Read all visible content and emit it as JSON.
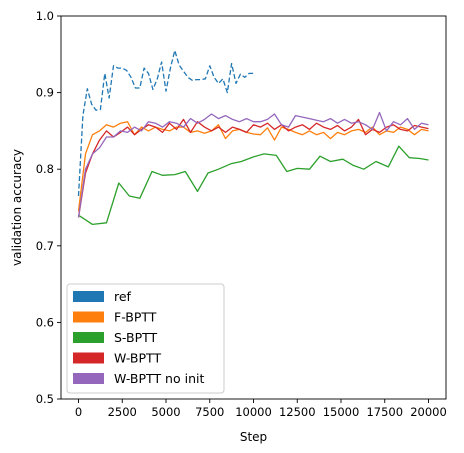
{
  "chart_data": {
    "type": "line",
    "xlabel": "Step",
    "ylabel": "validation accuracy",
    "xlim": [
      -1000,
      21000
    ],
    "ylim": [
      0.5,
      1.0
    ],
    "xticks": [
      0,
      2500,
      5000,
      7500,
      10000,
      12500,
      15000,
      17500,
      20000
    ],
    "xtick_labels": [
      "0",
      "2500",
      "5000",
      "7500",
      "10000",
      "12500",
      "15000",
      "17500",
      "20000"
    ],
    "yticks": [
      0.5,
      0.6,
      0.7,
      0.8,
      0.9,
      1.0
    ],
    "ytick_labels": [
      "0.5",
      "0.6",
      "0.7",
      "0.8",
      "0.9",
      "1.0"
    ],
    "grid": false,
    "legend_position": "bottom-left",
    "series": [
      {
        "name": "ref",
        "color": "#1f77b4",
        "dash": "dashed",
        "x": [
          0,
          250,
          500,
          750,
          1000,
          1250,
          1500,
          1750,
          2000,
          2250,
          2500,
          2750,
          3000,
          3250,
          3500,
          3750,
          4000,
          4250,
          4500,
          4750,
          5000,
          5250,
          5500,
          5750,
          6000,
          6250,
          6500,
          6750,
          7000,
          7250,
          7500,
          7750,
          8000,
          8250,
          8500,
          8750,
          9000,
          9250,
          9500,
          9750,
          10000
        ],
        "y": [
          0.765,
          0.87,
          0.905,
          0.885,
          0.877,
          0.878,
          0.925,
          0.893,
          0.935,
          0.932,
          0.932,
          0.929,
          0.92,
          0.906,
          0.906,
          0.932,
          0.925,
          0.904,
          0.918,
          0.94,
          0.902,
          0.932,
          0.955,
          0.936,
          0.928,
          0.92,
          0.916,
          0.917,
          0.917,
          0.918,
          0.935,
          0.92,
          0.912,
          0.918,
          0.9,
          0.938,
          0.912,
          0.924,
          0.92,
          0.925,
          0.925
        ]
      },
      {
        "name": "F-BPTT",
        "color": "#ff7f0e",
        "dash": "solid",
        "x": [
          0,
          400,
          800,
          1200,
          1600,
          2000,
          2400,
          2800,
          3200,
          3600,
          4000,
          4400,
          4800,
          5200,
          5600,
          6000,
          6400,
          6800,
          7200,
          7600,
          8000,
          8400,
          8800,
          9200,
          9600,
          10000,
          10400,
          10800,
          11200,
          11600,
          12000,
          12400,
          12800,
          13200,
          13600,
          14000,
          14400,
          14800,
          15200,
          15600,
          16000,
          16400,
          16800,
          17200,
          17600,
          18000,
          18400,
          18800,
          19200,
          19600,
          20000
        ],
        "y": [
          0.745,
          0.82,
          0.845,
          0.85,
          0.858,
          0.855,
          0.86,
          0.862,
          0.845,
          0.855,
          0.85,
          0.855,
          0.852,
          0.85,
          0.855,
          0.855,
          0.848,
          0.85,
          0.847,
          0.85,
          0.858,
          0.84,
          0.85,
          0.852,
          0.848,
          0.846,
          0.845,
          0.854,
          0.838,
          0.855,
          0.852,
          0.848,
          0.845,
          0.85,
          0.845,
          0.848,
          0.84,
          0.848,
          0.845,
          0.85,
          0.852,
          0.848,
          0.855,
          0.845,
          0.85,
          0.848,
          0.855,
          0.852,
          0.845,
          0.852,
          0.85
        ]
      },
      {
        "name": "S-BPTT",
        "color": "#2ca02c",
        "dash": "solid",
        "x": [
          0,
          800,
          1600,
          2300,
          2900,
          3500,
          4200,
          4800,
          5500,
          6100,
          6800,
          7400,
          8000,
          8700,
          9300,
          10000,
          10600,
          11300,
          11900,
          12500,
          13200,
          13800,
          14400,
          15100,
          15700,
          16300,
          17000,
          17700,
          18300,
          18900,
          19500,
          20000
        ],
        "y": [
          0.74,
          0.728,
          0.73,
          0.782,
          0.765,
          0.762,
          0.797,
          0.792,
          0.793,
          0.797,
          0.771,
          0.795,
          0.8,
          0.807,
          0.81,
          0.816,
          0.82,
          0.818,
          0.797,
          0.801,
          0.8,
          0.817,
          0.81,
          0.813,
          0.805,
          0.8,
          0.81,
          0.803,
          0.83,
          0.815,
          0.814,
          0.812
        ]
      },
      {
        "name": "W-BPTT",
        "color": "#d62728",
        "dash": "solid",
        "x": [
          0,
          400,
          800,
          1200,
          1600,
          2000,
          2400,
          2800,
          3200,
          3600,
          4000,
          4400,
          4800,
          5200,
          5600,
          6000,
          6400,
          6800,
          7200,
          7600,
          8000,
          8400,
          8800,
          9200,
          9600,
          10000,
          10400,
          10800,
          11200,
          11600,
          12000,
          12400,
          12800,
          13200,
          13600,
          14000,
          14400,
          14800,
          15200,
          15600,
          16000,
          16400,
          16800,
          17200,
          17600,
          18000,
          18400,
          18800,
          19200,
          19600,
          20000
        ],
        "y": [
          0.737,
          0.795,
          0.82,
          0.838,
          0.85,
          0.842,
          0.848,
          0.855,
          0.845,
          0.852,
          0.858,
          0.855,
          0.848,
          0.86,
          0.852,
          0.865,
          0.848,
          0.862,
          0.855,
          0.85,
          0.855,
          0.848,
          0.855,
          0.852,
          0.848,
          0.858,
          0.855,
          0.86,
          0.852,
          0.858,
          0.85,
          0.855,
          0.858,
          0.852,
          0.86,
          0.855,
          0.852,
          0.857,
          0.85,
          0.855,
          0.865,
          0.845,
          0.852,
          0.848,
          0.855,
          0.858,
          0.852,
          0.85,
          0.857,
          0.855,
          0.853
        ]
      },
      {
        "name": "W-BPTT no init",
        "color": "#9467bd",
        "dash": "solid",
        "x": [
          0,
          400,
          800,
          1200,
          1600,
          2000,
          2400,
          2800,
          3200,
          3600,
          4000,
          4400,
          4800,
          5200,
          5600,
          6000,
          6400,
          6800,
          7200,
          7600,
          8000,
          8400,
          8800,
          9200,
          9600,
          10000,
          10400,
          10800,
          11200,
          11600,
          12000,
          12400,
          12800,
          13200,
          13600,
          14000,
          14400,
          14800,
          15200,
          15600,
          16000,
          16400,
          16800,
          17200,
          17600,
          18000,
          18400,
          18800,
          19200,
          19600,
          20000
        ],
        "y": [
          0.737,
          0.8,
          0.82,
          0.828,
          0.842,
          0.842,
          0.85,
          0.848,
          0.855,
          0.85,
          0.862,
          0.86,
          0.855,
          0.862,
          0.86,
          0.855,
          0.866,
          0.86,
          0.865,
          0.872,
          0.866,
          0.87,
          0.865,
          0.862,
          0.866,
          0.862,
          0.862,
          0.865,
          0.872,
          0.858,
          0.855,
          0.87,
          0.868,
          0.866,
          0.864,
          0.862,
          0.866,
          0.86,
          0.865,
          0.86,
          0.862,
          0.858,
          0.852,
          0.874,
          0.85,
          0.862,
          0.858,
          0.866,
          0.852,
          0.86,
          0.858
        ]
      }
    ]
  }
}
